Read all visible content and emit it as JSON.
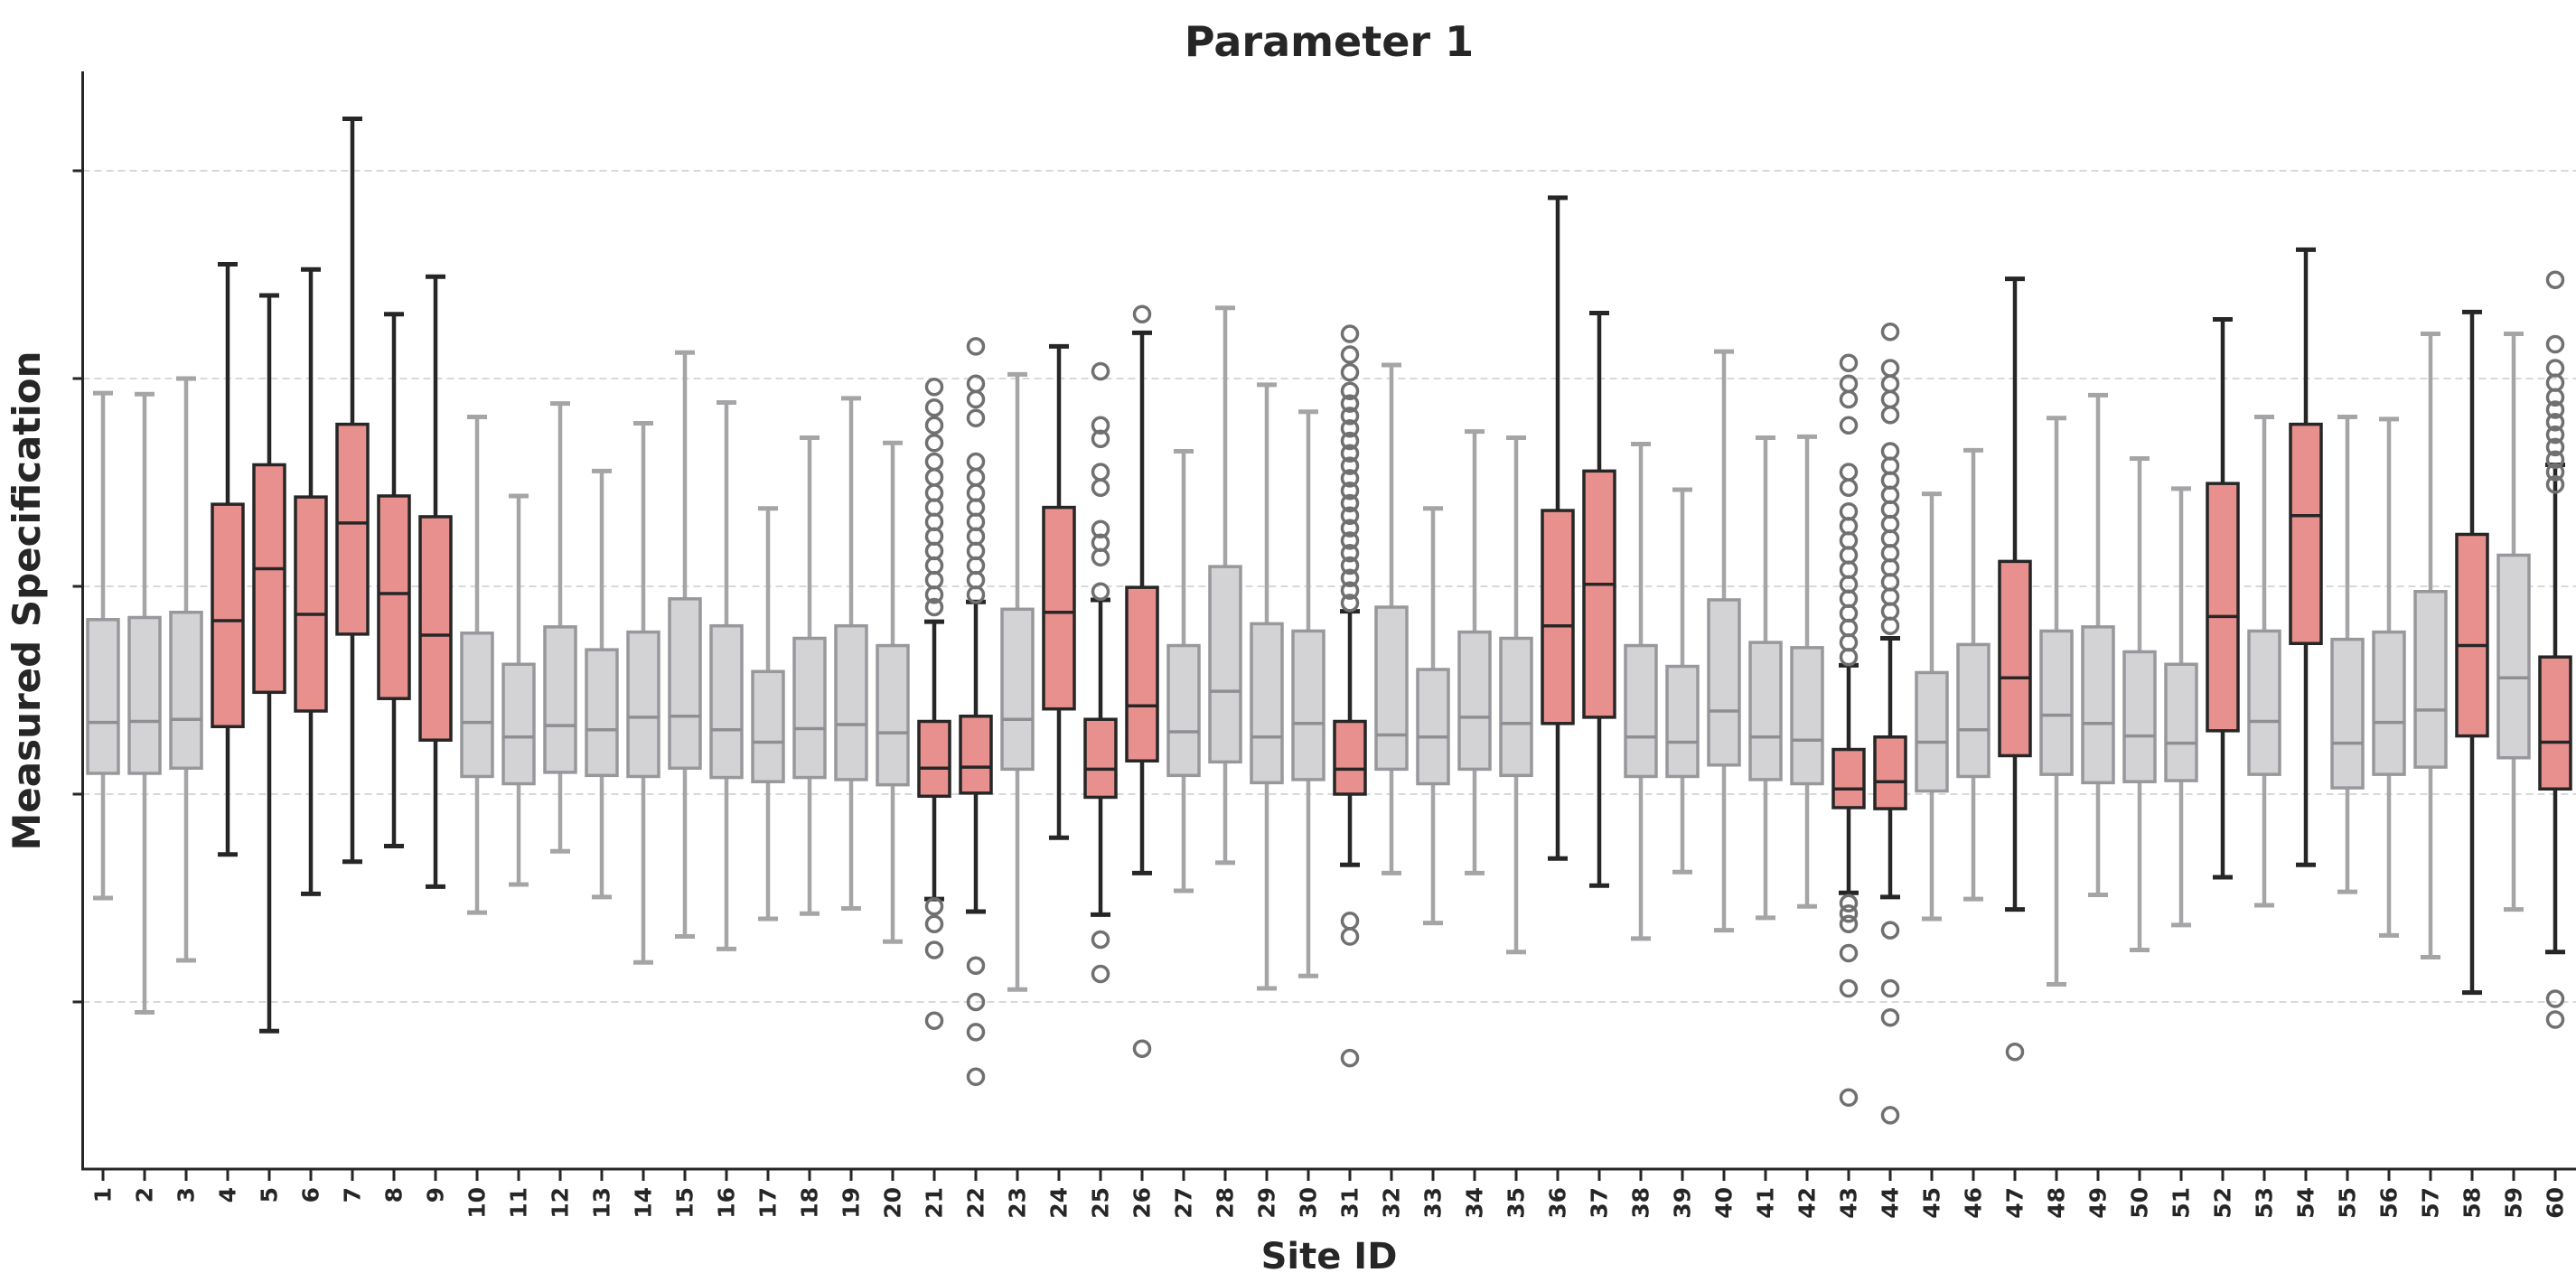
{
  "page": {
    "background": "#ffffff"
  },
  "chart_data": {
    "type": "boxplot",
    "title": "Parameter 1",
    "xlabel": "Site ID",
    "ylabel": "Measured Specification",
    "legend": null,
    "x_tick_labels": [
      "1",
      "2",
      "3",
      "4",
      "5",
      "6",
      "7",
      "8",
      "9",
      "10",
      "11",
      "12",
      "13",
      "14",
      "15",
      "16",
      "17",
      "18",
      "19",
      "20",
      "21",
      "22",
      "23",
      "24",
      "25",
      "26",
      "27",
      "28",
      "29",
      "30",
      "31",
      "32",
      "33",
      "34",
      "35",
      "36",
      "37",
      "38",
      "39",
      "40",
      "41",
      "42",
      "43",
      "44",
      "45",
      "46",
      "47",
      "48",
      "49",
      "50",
      "51",
      "52",
      "53",
      "54",
      "55",
      "56",
      "57",
      "58",
      "59",
      "60"
    ],
    "y_axis": {
      "tick_labels_visible": false,
      "grid_values": [
        2,
        4,
        6,
        8,
        10
      ],
      "ylim": [
        0.4,
        10.96
      ],
      "grid": true,
      "grid_style": "dashed"
    },
    "colors": {
      "highlighted_fill": "#E8908E",
      "highlighted_edge": "#262626",
      "highlighted_median": "#262626",
      "normal_fill": "#D3D3D5",
      "normal_edge": "#98989C",
      "normal_whisker": "#A5A5A7",
      "normal_median": "#8F8F93",
      "outlier_stroke": "#707070",
      "axis": "#262626",
      "grid": "#CCCCCC",
      "text": "#262626"
    },
    "series": [
      {
        "site": 1,
        "group": "normal",
        "whisker_low": 3.0,
        "q1": 4.2,
        "median": 4.69,
        "q3": 5.68,
        "whisker_high": 7.86,
        "outliers": []
      },
      {
        "site": 2,
        "group": "normal",
        "whisker_low": 1.9,
        "q1": 4.2,
        "median": 4.7,
        "q3": 5.7,
        "whisker_high": 7.85,
        "outliers": []
      },
      {
        "site": 3,
        "group": "normal",
        "whisker_low": 2.4,
        "q1": 4.25,
        "median": 4.72,
        "q3": 5.75,
        "whisker_high": 8.0,
        "outliers": []
      },
      {
        "site": 4,
        "group": "highlighted",
        "whisker_low": 3.42,
        "q1": 4.65,
        "median": 5.67,
        "q3": 6.79,
        "whisker_high": 9.1,
        "outliers": []
      },
      {
        "site": 5,
        "group": "highlighted",
        "whisker_low": 1.72,
        "q1": 4.98,
        "median": 6.17,
        "q3": 7.17,
        "whisker_high": 8.8,
        "outliers": []
      },
      {
        "site": 6,
        "group": "highlighted",
        "whisker_low": 3.04,
        "q1": 4.8,
        "median": 5.73,
        "q3": 6.86,
        "whisker_high": 9.05,
        "outliers": []
      },
      {
        "site": 7,
        "group": "highlighted",
        "whisker_low": 3.35,
        "q1": 5.54,
        "median": 6.61,
        "q3": 7.56,
        "whisker_high": 10.5,
        "outliers": []
      },
      {
        "site": 8,
        "group": "highlighted",
        "whisker_low": 3.5,
        "q1": 4.92,
        "median": 5.93,
        "q3": 6.87,
        "whisker_high": 8.62,
        "outliers": []
      },
      {
        "site": 9,
        "group": "highlighted",
        "whisker_low": 3.11,
        "q1": 4.52,
        "median": 5.53,
        "q3": 6.67,
        "whisker_high": 8.98,
        "outliers": []
      },
      {
        "site": 10,
        "group": "normal",
        "whisker_low": 2.86,
        "q1": 4.17,
        "median": 4.69,
        "q3": 5.55,
        "whisker_high": 7.63,
        "outliers": []
      },
      {
        "site": 11,
        "group": "normal",
        "whisker_low": 3.13,
        "q1": 4.1,
        "median": 4.55,
        "q3": 5.25,
        "whisker_high": 6.87,
        "outliers": []
      },
      {
        "site": 12,
        "group": "normal",
        "whisker_low": 3.45,
        "q1": 4.21,
        "median": 4.66,
        "q3": 5.61,
        "whisker_high": 7.76,
        "outliers": []
      },
      {
        "site": 13,
        "group": "normal",
        "whisker_low": 3.01,
        "q1": 4.18,
        "median": 4.62,
        "q3": 5.39,
        "whisker_high": 7.11,
        "outliers": []
      },
      {
        "site": 14,
        "group": "normal",
        "whisker_low": 2.38,
        "q1": 4.17,
        "median": 4.74,
        "q3": 5.56,
        "whisker_high": 7.57,
        "outliers": []
      },
      {
        "site": 15,
        "group": "normal",
        "whisker_low": 2.63,
        "q1": 4.25,
        "median": 4.75,
        "q3": 5.88,
        "whisker_high": 8.25,
        "outliers": []
      },
      {
        "site": 16,
        "group": "normal",
        "whisker_low": 2.51,
        "q1": 4.16,
        "median": 4.62,
        "q3": 5.62,
        "whisker_high": 7.77,
        "outliers": []
      },
      {
        "site": 17,
        "group": "normal",
        "whisker_low": 2.8,
        "q1": 4.12,
        "median": 4.5,
        "q3": 5.18,
        "whisker_high": 6.75,
        "outliers": []
      },
      {
        "site": 18,
        "group": "normal",
        "whisker_low": 2.85,
        "q1": 4.16,
        "median": 4.63,
        "q3": 5.5,
        "whisker_high": 7.43,
        "outliers": []
      },
      {
        "site": 19,
        "group": "normal",
        "whisker_low": 2.9,
        "q1": 4.14,
        "median": 4.67,
        "q3": 5.62,
        "whisker_high": 7.81,
        "outliers": []
      },
      {
        "site": 20,
        "group": "normal",
        "whisker_low": 2.58,
        "q1": 4.09,
        "median": 4.59,
        "q3": 5.43,
        "whisker_high": 7.38,
        "outliers": []
      },
      {
        "site": 21,
        "group": "highlighted",
        "whisker_low": 2.99,
        "q1": 3.98,
        "median": 4.25,
        "q3": 4.7,
        "whisker_high": 5.66,
        "outliers": [
          7.92,
          7.72,
          7.55,
          7.38,
          7.2,
          7.05,
          6.9,
          6.76,
          6.62,
          6.48,
          6.34,
          6.2,
          6.06,
          5.92,
          5.8,
          2.92,
          2.75,
          2.5,
          1.82
        ]
      },
      {
        "site": 22,
        "group": "highlighted",
        "whisker_low": 2.87,
        "q1": 4.01,
        "median": 4.26,
        "q3": 4.75,
        "whisker_high": 5.85,
        "outliers": [
          8.31,
          7.95,
          7.8,
          7.62,
          7.2,
          7.05,
          6.9,
          6.76,
          6.62,
          6.48,
          6.34,
          6.2,
          6.06,
          5.92,
          2.35,
          2.0,
          1.71,
          1.28
        ]
      },
      {
        "site": 23,
        "group": "normal",
        "whisker_low": 2.12,
        "q1": 4.24,
        "median": 4.72,
        "q3": 5.78,
        "whisker_high": 8.04,
        "outliers": []
      },
      {
        "site": 24,
        "group": "highlighted",
        "whisker_low": 3.58,
        "q1": 4.82,
        "median": 5.75,
        "q3": 6.76,
        "whisker_high": 8.31,
        "outliers": []
      },
      {
        "site": 25,
        "group": "highlighted",
        "whisker_low": 2.84,
        "q1": 3.97,
        "median": 4.24,
        "q3": 4.72,
        "whisker_high": 5.87,
        "outliers": [
          8.07,
          7.55,
          7.42,
          7.1,
          6.95,
          6.55,
          6.42,
          6.28,
          5.95,
          2.6,
          2.27
        ]
      },
      {
        "site": 26,
        "group": "highlighted",
        "whisker_low": 3.24,
        "q1": 4.32,
        "median": 4.85,
        "q3": 5.99,
        "whisker_high": 8.44,
        "outliers": [
          8.62,
          1.55
        ]
      },
      {
        "site": 27,
        "group": "normal",
        "whisker_low": 3.07,
        "q1": 4.18,
        "median": 4.6,
        "q3": 5.43,
        "whisker_high": 7.3,
        "outliers": []
      },
      {
        "site": 28,
        "group": "normal",
        "whisker_low": 3.34,
        "q1": 4.31,
        "median": 4.99,
        "q3": 6.19,
        "whisker_high": 8.68,
        "outliers": []
      },
      {
        "site": 29,
        "group": "normal",
        "whisker_low": 2.13,
        "q1": 4.11,
        "median": 4.55,
        "q3": 5.64,
        "whisker_high": 7.94,
        "outliers": []
      },
      {
        "site": 30,
        "group": "normal",
        "whisker_low": 2.25,
        "q1": 4.14,
        "median": 4.68,
        "q3": 5.57,
        "whisker_high": 7.68,
        "outliers": []
      },
      {
        "site": 31,
        "group": "highlighted",
        "whisker_low": 3.32,
        "q1": 4.0,
        "median": 4.24,
        "q3": 4.7,
        "whisker_high": 5.76,
        "outliers": [
          8.43,
          8.23,
          8.06,
          7.88,
          7.76,
          7.64,
          7.52,
          7.4,
          7.28,
          7.16,
          7.04,
          6.92,
          6.8,
          6.68,
          6.56,
          6.44,
          6.32,
          6.2,
          6.08,
          5.96,
          5.84,
          2.78,
          2.63,
          1.46
        ]
      },
      {
        "site": 32,
        "group": "normal",
        "whisker_low": 3.24,
        "q1": 4.24,
        "median": 4.57,
        "q3": 5.8,
        "whisker_high": 8.13,
        "outliers": []
      },
      {
        "site": 33,
        "group": "normal",
        "whisker_low": 2.76,
        "q1": 4.1,
        "median": 4.55,
        "q3": 5.2,
        "whisker_high": 6.75,
        "outliers": []
      },
      {
        "site": 34,
        "group": "normal",
        "whisker_low": 3.24,
        "q1": 4.24,
        "median": 4.74,
        "q3": 5.56,
        "whisker_high": 7.49,
        "outliers": []
      },
      {
        "site": 35,
        "group": "normal",
        "whisker_low": 2.48,
        "q1": 4.18,
        "median": 4.68,
        "q3": 5.5,
        "whisker_high": 7.43,
        "outliers": []
      },
      {
        "site": 36,
        "group": "highlighted",
        "whisker_low": 3.38,
        "q1": 4.68,
        "median": 5.62,
        "q3": 6.73,
        "whisker_high": 9.74,
        "outliers": []
      },
      {
        "site": 37,
        "group": "highlighted",
        "whisker_low": 3.12,
        "q1": 4.74,
        "median": 6.02,
        "q3": 7.11,
        "whisker_high": 8.63,
        "outliers": []
      },
      {
        "site": 38,
        "group": "normal",
        "whisker_low": 2.61,
        "q1": 4.17,
        "median": 4.55,
        "q3": 5.43,
        "whisker_high": 7.37,
        "outliers": []
      },
      {
        "site": 39,
        "group": "normal",
        "whisker_low": 3.25,
        "q1": 4.17,
        "median": 4.5,
        "q3": 5.23,
        "whisker_high": 6.93,
        "outliers": []
      },
      {
        "site": 40,
        "group": "normal",
        "whisker_low": 2.69,
        "q1": 4.28,
        "median": 4.8,
        "q3": 5.87,
        "whisker_high": 8.26,
        "outliers": []
      },
      {
        "site": 41,
        "group": "normal",
        "whisker_low": 2.81,
        "q1": 4.14,
        "median": 4.55,
        "q3": 5.46,
        "whisker_high": 7.43,
        "outliers": []
      },
      {
        "site": 42,
        "group": "normal",
        "whisker_low": 2.92,
        "q1": 4.1,
        "median": 4.52,
        "q3": 5.41,
        "whisker_high": 7.44,
        "outliers": []
      },
      {
        "site": 43,
        "group": "highlighted",
        "whisker_low": 3.05,
        "q1": 3.87,
        "median": 4.05,
        "q3": 4.43,
        "whisker_high": 5.24,
        "outliers": [
          8.15,
          7.95,
          7.8,
          7.55,
          7.1,
          6.95,
          6.72,
          6.58,
          6.44,
          6.3,
          6.16,
          6.02,
          5.88,
          5.74,
          5.6,
          5.46,
          5.32,
          2.95,
          2.85,
          2.75,
          2.47,
          2.13,
          1.08
        ]
      },
      {
        "site": 44,
        "group": "highlighted",
        "whisker_low": 3.01,
        "q1": 3.86,
        "median": 4.12,
        "q3": 4.55,
        "whisker_high": 5.5,
        "outliers": [
          8.45,
          8.1,
          7.95,
          7.8,
          7.65,
          7.3,
          7.16,
          7.02,
          6.88,
          6.74,
          6.6,
          6.46,
          6.32,
          6.18,
          6.04,
          5.9,
          5.76,
          5.62,
          2.69,
          2.13,
          1.85,
          0.91
        ]
      },
      {
        "site": 45,
        "group": "normal",
        "whisker_low": 2.8,
        "q1": 4.03,
        "median": 4.5,
        "q3": 5.17,
        "whisker_high": 6.89,
        "outliers": []
      },
      {
        "site": 46,
        "group": "normal",
        "whisker_low": 2.99,
        "q1": 4.17,
        "median": 4.62,
        "q3": 5.44,
        "whisker_high": 7.31,
        "outliers": []
      },
      {
        "site": 47,
        "group": "highlighted",
        "whisker_low": 2.89,
        "q1": 4.37,
        "median": 5.12,
        "q3": 6.24,
        "whisker_high": 8.96,
        "outliers": [
          1.52
        ]
      },
      {
        "site": 48,
        "group": "normal",
        "whisker_low": 2.17,
        "q1": 4.19,
        "median": 4.76,
        "q3": 5.57,
        "whisker_high": 7.62,
        "outliers": []
      },
      {
        "site": 49,
        "group": "normal",
        "whisker_low": 3.03,
        "q1": 4.11,
        "median": 4.68,
        "q3": 5.61,
        "whisker_high": 7.84,
        "outliers": []
      },
      {
        "site": 50,
        "group": "normal",
        "whisker_low": 2.5,
        "q1": 4.12,
        "median": 4.56,
        "q3": 5.37,
        "whisker_high": 7.23,
        "outliers": []
      },
      {
        "site": 51,
        "group": "normal",
        "whisker_low": 2.74,
        "q1": 4.13,
        "median": 4.49,
        "q3": 5.25,
        "whisker_high": 6.94,
        "outliers": []
      },
      {
        "site": 52,
        "group": "highlighted",
        "whisker_low": 3.2,
        "q1": 4.61,
        "median": 5.71,
        "q3": 6.99,
        "whisker_high": 8.57,
        "outliers": []
      },
      {
        "site": 53,
        "group": "normal",
        "whisker_low": 2.93,
        "q1": 4.19,
        "median": 4.7,
        "q3": 5.57,
        "whisker_high": 7.63,
        "outliers": []
      },
      {
        "site": 54,
        "group": "highlighted",
        "whisker_low": 3.32,
        "q1": 5.45,
        "median": 6.68,
        "q3": 7.56,
        "whisker_high": 9.24,
        "outliers": []
      },
      {
        "site": 55,
        "group": "normal",
        "whisker_low": 3.06,
        "q1": 4.06,
        "median": 4.49,
        "q3": 5.49,
        "whisker_high": 7.63,
        "outliers": []
      },
      {
        "site": 56,
        "group": "normal",
        "whisker_low": 2.64,
        "q1": 4.19,
        "median": 4.69,
        "q3": 5.56,
        "whisker_high": 7.61,
        "outliers": []
      },
      {
        "site": 57,
        "group": "normal",
        "whisker_low": 2.43,
        "q1": 4.26,
        "median": 4.81,
        "q3": 5.95,
        "whisker_high": 8.43,
        "outliers": []
      },
      {
        "site": 58,
        "group": "highlighted",
        "whisker_low": 2.09,
        "q1": 4.56,
        "median": 5.43,
        "q3": 6.5,
        "whisker_high": 8.64,
        "outliers": []
      },
      {
        "site": 59,
        "group": "normal",
        "whisker_low": 2.89,
        "q1": 4.35,
        "median": 5.12,
        "q3": 6.3,
        "whisker_high": 8.43,
        "outliers": []
      },
      {
        "site": 60,
        "group": "highlighted",
        "whisker_low": 2.48,
        "q1": 4.05,
        "median": 4.5,
        "q3": 5.32,
        "whisker_high": 7.17,
        "outliers": [
          8.95,
          8.33,
          8.1,
          7.96,
          7.82,
          7.7,
          7.58,
          7.46,
          7.34,
          7.22,
          7.1,
          6.98,
          2.03,
          1.83
        ]
      }
    ]
  }
}
